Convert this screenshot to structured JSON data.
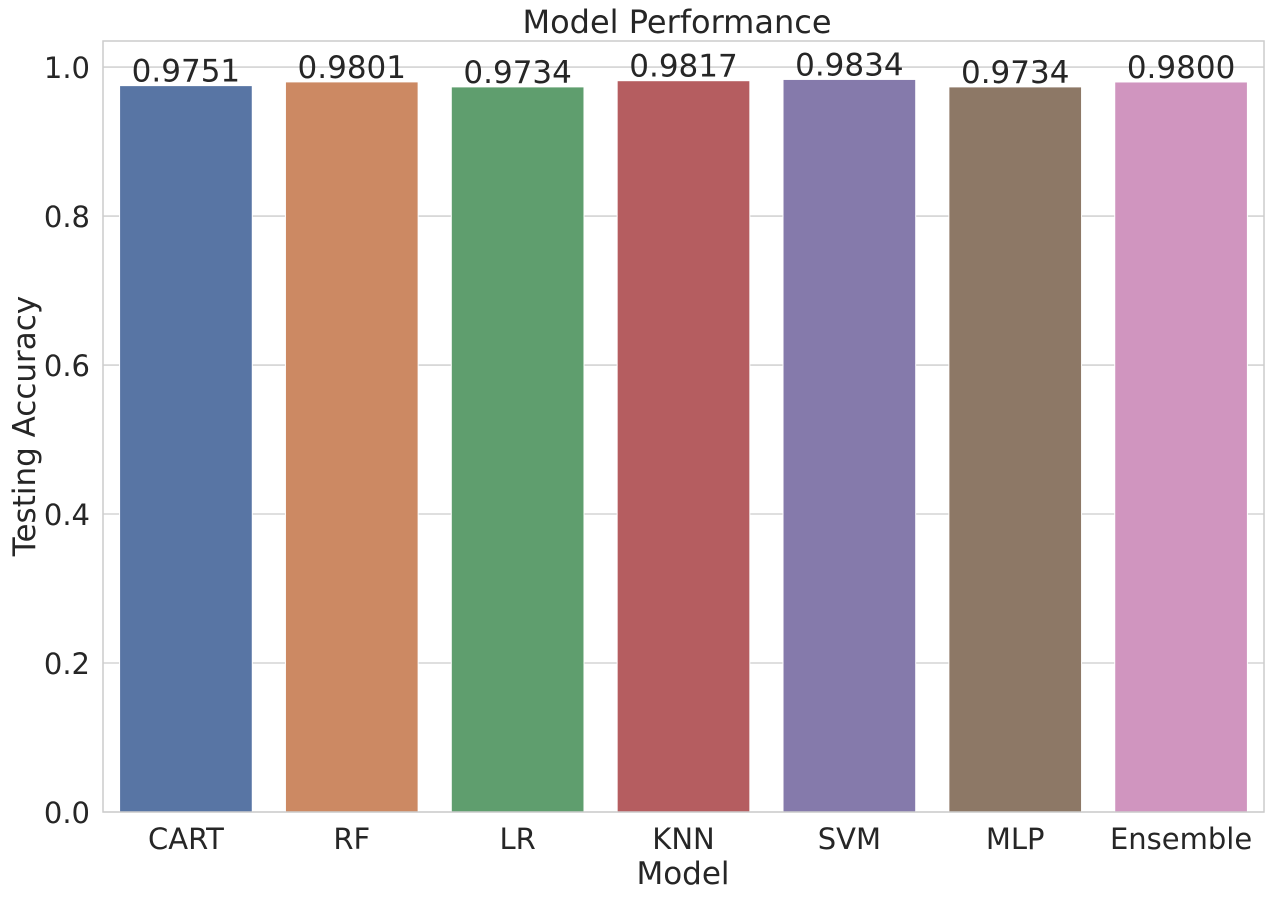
{
  "chart_data": {
    "type": "bar",
    "title": "Model Performance",
    "xlabel": "Model",
    "ylabel": "Testing Accuracy",
    "categories": [
      "CART",
      "RF",
      "LR",
      "KNN",
      "SVM",
      "MLP",
      "Ensemble"
    ],
    "values": [
      0.9751,
      0.9801,
      0.9734,
      0.9817,
      0.9834,
      0.9734,
      0.98
    ],
    "value_labels": [
      "0.9751",
      "0.9801",
      "0.9734",
      "0.9817",
      "0.9834",
      "0.9734",
      "0.9800"
    ],
    "colors": [
      "#5875a4",
      "#cc8963",
      "#5f9e6e",
      "#b55d60",
      "#857aab",
      "#8d7866",
      "#d095bf"
    ],
    "ylim": [
      0,
      1.035
    ],
    "yticks": [
      0.0,
      0.2,
      0.4,
      0.6,
      0.8,
      1.0
    ],
    "ytick_labels": [
      "0.0",
      "0.2",
      "0.4",
      "0.6",
      "0.8",
      "1.0"
    ],
    "grid": "y",
    "legend": "none"
  }
}
